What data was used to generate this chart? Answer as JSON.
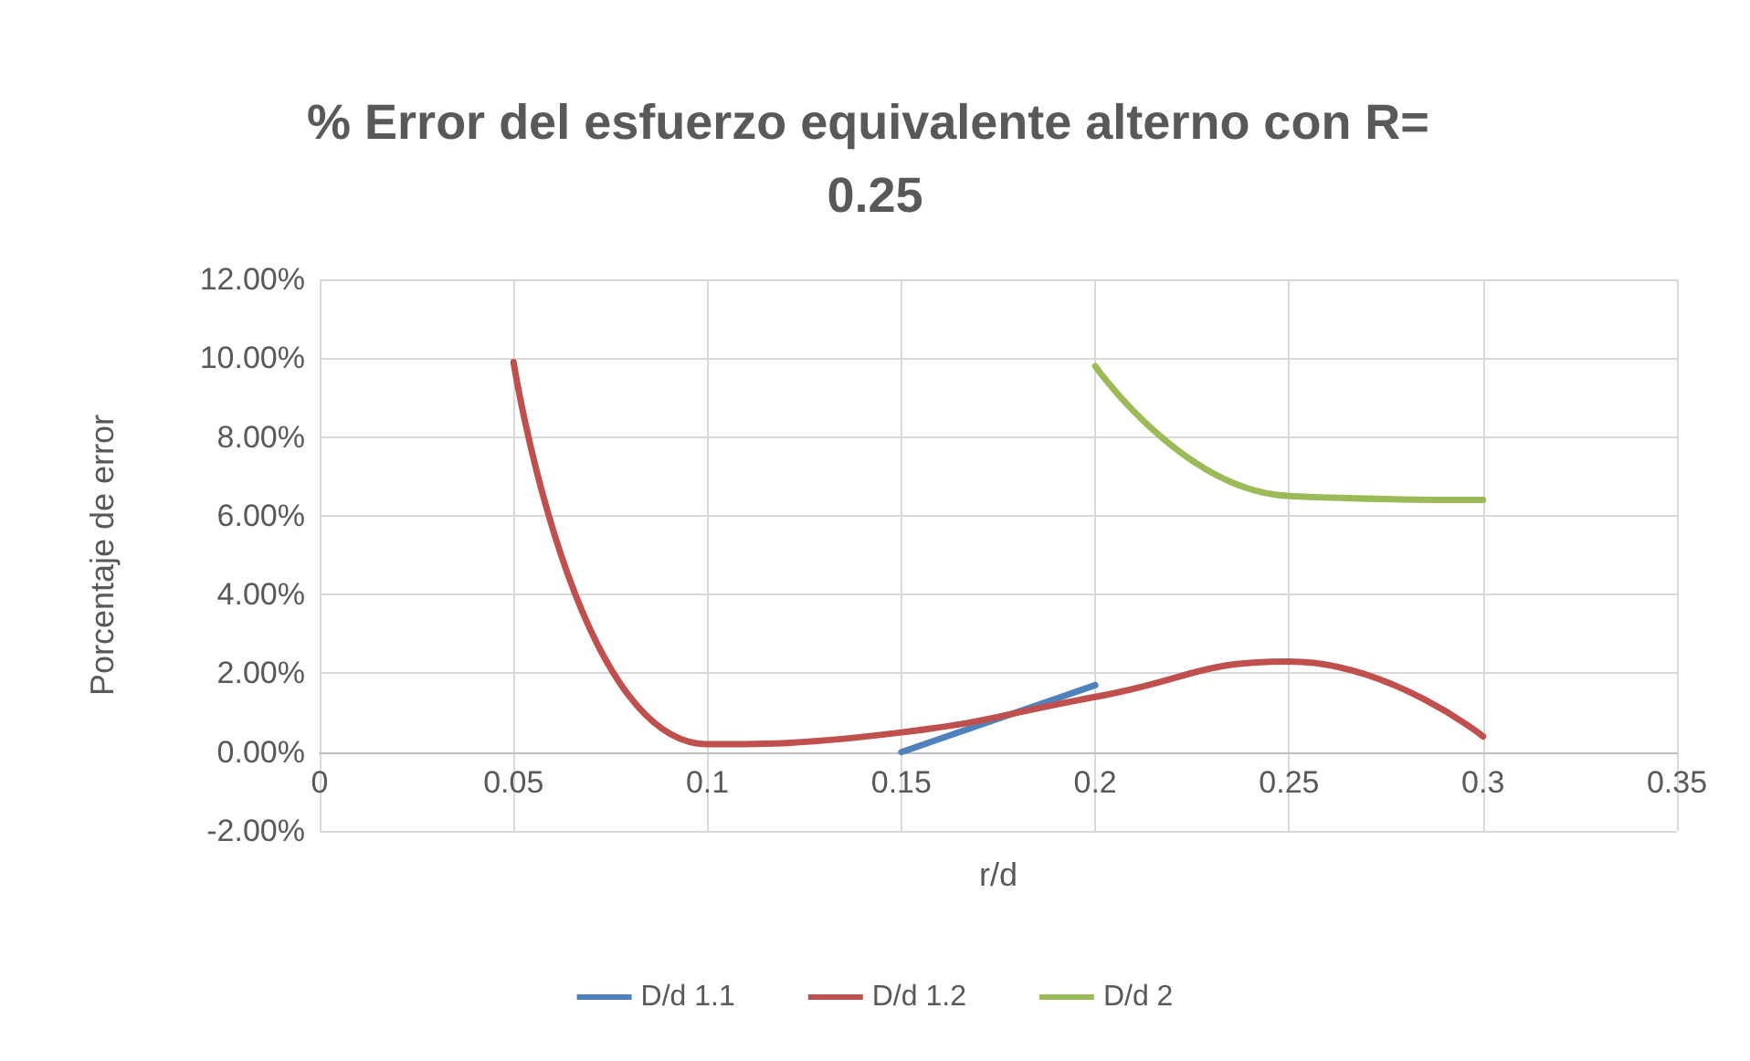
{
  "chart_data": {
    "type": "line",
    "title": "% Error del esfuerzo equivalente alterno con R= 0.25",
    "xlabel": "r/d",
    "ylabel": "Porcentaje de error",
    "series": [
      {
        "name": "D/d 1.1",
        "color": "#4f81bd",
        "x": [
          0.15,
          0.2
        ],
        "values": [
          0.0,
          1.7
        ]
      },
      {
        "name": "D/d 1.2",
        "color": "#c0504d",
        "x": [
          0.05,
          0.1,
          0.15,
          0.2,
          0.25,
          0.3
        ],
        "values": [
          9.9,
          0.2,
          0.5,
          1.4,
          2.3,
          0.4
        ]
      },
      {
        "name": "D/d 2",
        "color": "#9bbb59",
        "x": [
          0.2,
          0.25,
          0.3
        ],
        "values": [
          9.8,
          6.5,
          6.4
        ]
      }
    ],
    "xlim": [
      0,
      0.35
    ],
    "xticks": [
      0,
      0.05,
      0.1,
      0.15,
      0.2,
      0.25,
      0.3,
      0.35
    ],
    "ylim": [
      -2,
      12
    ],
    "yticks": [
      {
        "value": -2,
        "label": "-2.00%"
      },
      {
        "value": 0,
        "label": "0.00%"
      },
      {
        "value": 2,
        "label": "2.00%"
      },
      {
        "value": 4,
        "label": "4.00%"
      },
      {
        "value": 6,
        "label": "6.00%"
      },
      {
        "value": 8,
        "label": "8.00%"
      },
      {
        "value": 10,
        "label": "10.00%"
      },
      {
        "value": 12,
        "label": "12.00%"
      }
    ],
    "grid": true,
    "legend": "bottom",
    "marker": "none",
    "line_style": "solid"
  }
}
